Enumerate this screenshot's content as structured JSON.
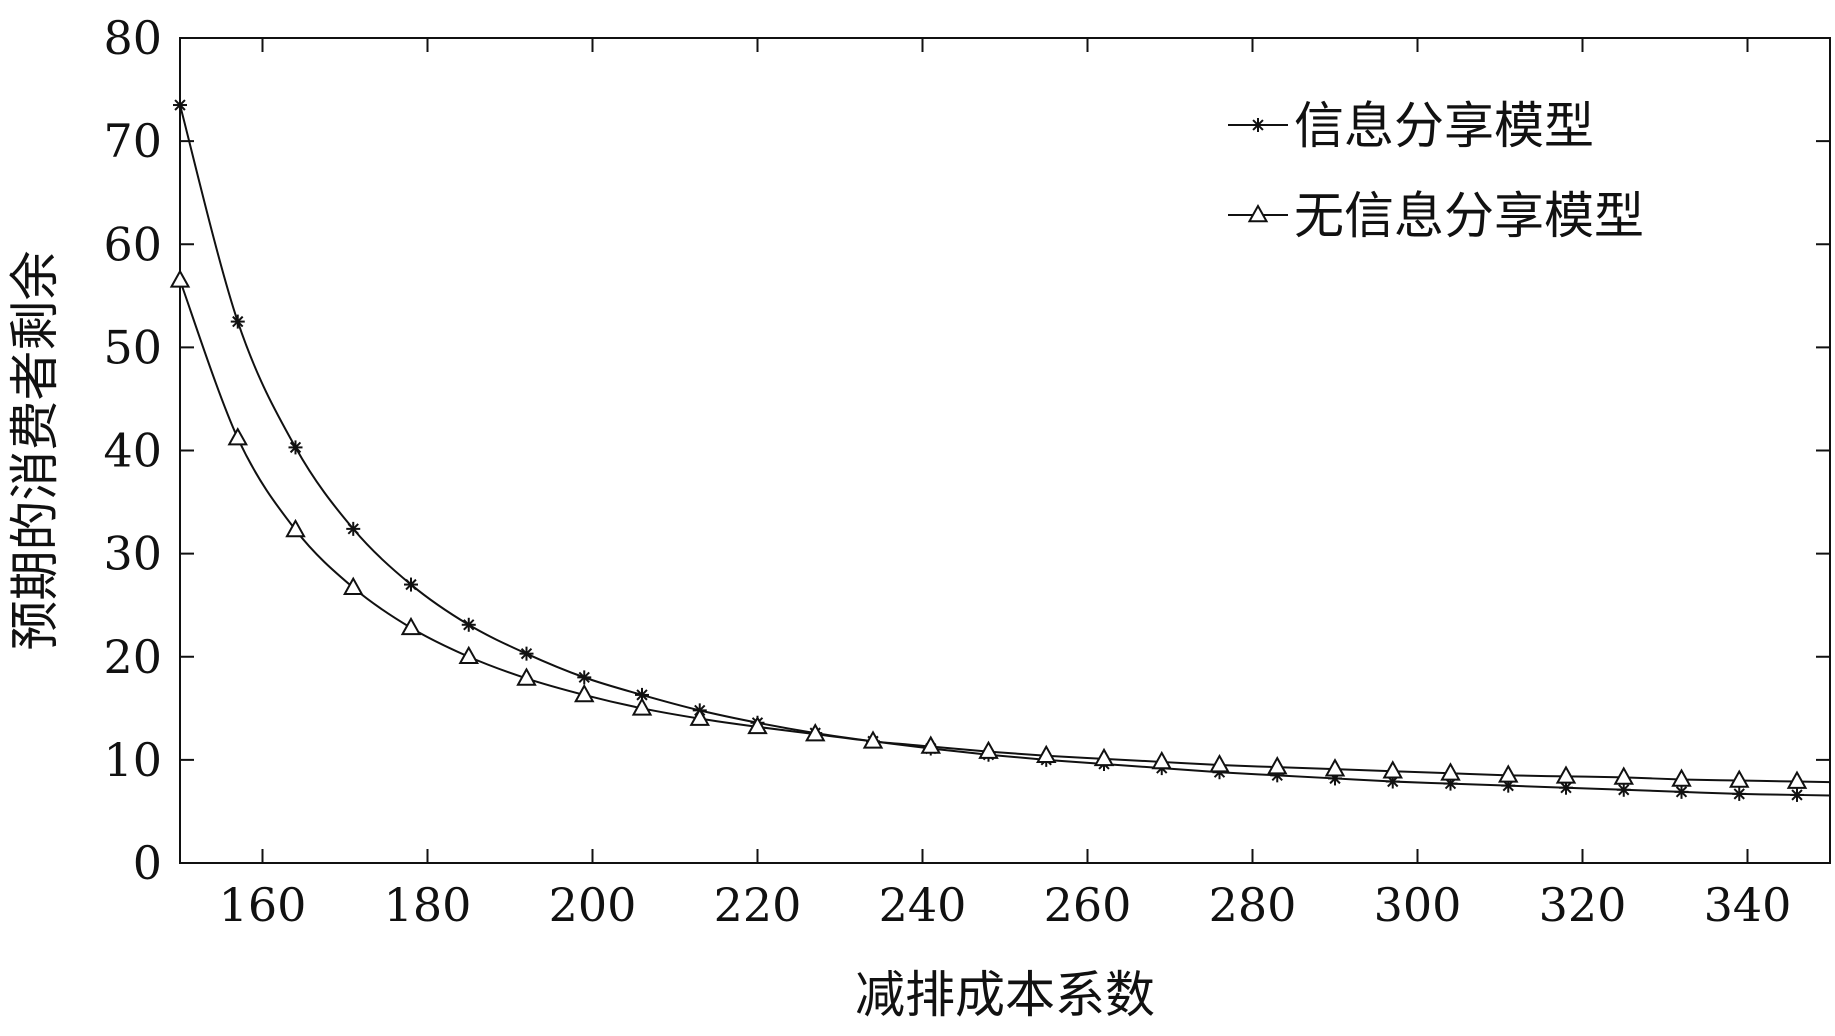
{
  "chart_data": {
    "type": "line",
    "title": "",
    "xlabel": "减排成本系数",
    "ylabel": "预期的消费者剩余",
    "xlim": [
      150,
      350
    ],
    "ylim": [
      0,
      80
    ],
    "x_ticks": [
      160,
      180,
      200,
      220,
      240,
      260,
      280,
      300,
      320,
      340
    ],
    "y_ticks": [
      0,
      10,
      20,
      30,
      40,
      50,
      60,
      70,
      80
    ],
    "grid": false,
    "legend_position": "top-right",
    "x": [
      150,
      157,
      164,
      171,
      178,
      185,
      192,
      199,
      206,
      213,
      220,
      227,
      234,
      241,
      248,
      255,
      262,
      269,
      276,
      283,
      290,
      297,
      304,
      311,
      318,
      325,
      332,
      339,
      346
    ],
    "series": [
      {
        "name": "信息分享模型",
        "marker": "asterisk",
        "values": [
          73.5,
          52.5,
          40.3,
          32.4,
          27.0,
          23.1,
          20.3,
          18.0,
          16.3,
          14.8,
          13.6,
          12.6,
          11.8,
          11.1,
          10.5,
          10.0,
          9.6,
          9.2,
          8.8,
          8.5,
          8.2,
          7.9,
          7.7,
          7.5,
          7.3,
          7.1,
          6.9,
          6.7,
          6.6
        ]
      },
      {
        "name": "无信息分享模型",
        "marker": "triangle",
        "values": [
          56.5,
          41.2,
          32.3,
          26.7,
          22.8,
          20.0,
          17.9,
          16.3,
          15.0,
          14.0,
          13.2,
          12.5,
          11.8,
          11.3,
          10.8,
          10.4,
          10.1,
          9.8,
          9.5,
          9.3,
          9.1,
          8.9,
          8.7,
          8.5,
          8.4,
          8.3,
          8.1,
          8.0,
          7.9
        ]
      }
    ],
    "colors": {
      "line": "#111111",
      "axis": "#111111"
    }
  }
}
